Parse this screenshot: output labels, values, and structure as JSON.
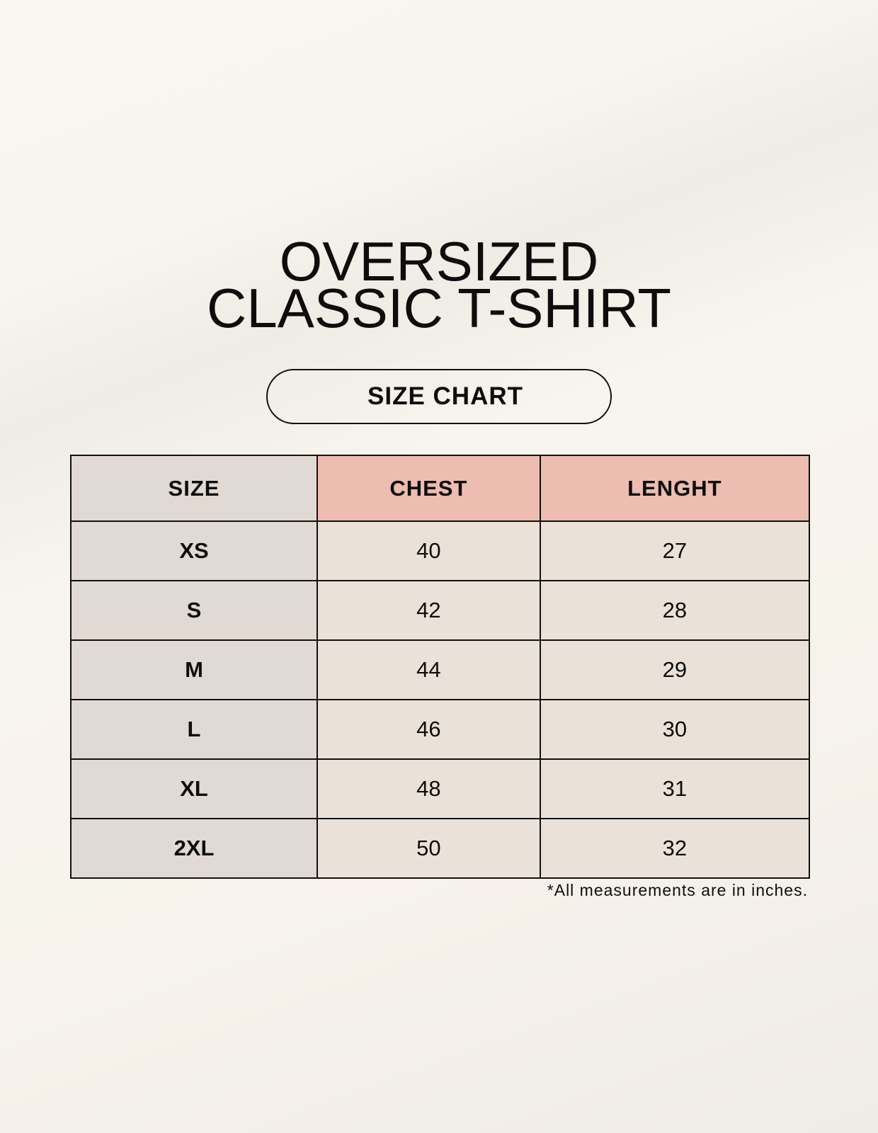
{
  "title": {
    "line1": "OVERSIZED",
    "line2": "CLASSIC T-SHIRT"
  },
  "subtitle": "SIZE CHART",
  "table": {
    "headers": [
      "SIZE",
      "CHEST",
      "LENGHT"
    ],
    "rows": [
      [
        "XS",
        "40",
        "27"
      ],
      [
        "S",
        "42",
        "28"
      ],
      [
        "M",
        "44",
        "29"
      ],
      [
        "L",
        "46",
        "30"
      ],
      [
        "XL",
        "48",
        "31"
      ],
      [
        "2XL",
        "50",
        "32"
      ]
    ]
  },
  "note": "*All measurements are in inches.",
  "colors": {
    "size_column": "#e1d9d3",
    "header_accent": "#ecbdb0",
    "cell": "#eae2d8"
  }
}
